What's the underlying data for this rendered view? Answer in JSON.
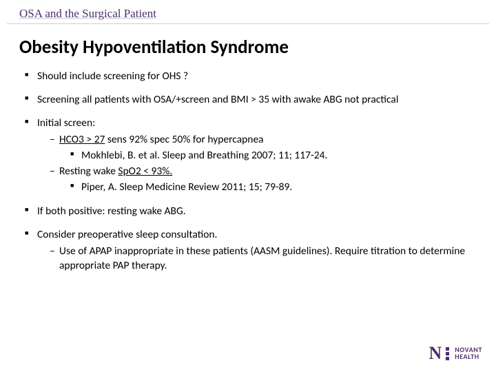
{
  "colors": {
    "brand": "#512d6d",
    "text": "#000000",
    "rule": "#d0cbd8",
    "bg": "#ffffff"
  },
  "fonts": {
    "breadcrumb_family": "Georgia",
    "body_family": "Calibri",
    "title_size_pt": 27,
    "body_size_pt": 15.5
  },
  "breadcrumb": "OSA and the Surgical Patient",
  "title": "Obesity Hypoventilation Syndrome",
  "bullets": {
    "b1": "Should  include screening for OHS ?",
    "b2": "Screening all patients with OSA/+screen and BMI > 35 with awake ABG not practical",
    "b3": "Initial screen:",
    "b3a_u": "HCO3 > 27",
    "b3a_rest": "   sens 92% spec 50% for hypercapnea",
    "b3a_ref": "Mokhlebi, B. et al. Sleep and Breathing 2007; 11; 117-24.",
    "b3b_prefix": "Resting wake ",
    "b3b_u": "SpO2 < 93%.",
    "b3b_ref": "Piper, A. Sleep Medicine Review 2011; 15; 79-89.",
    "b4": "If both positive: resting wake ABG.",
    "b5": "Consider preoperative sleep consultation.",
    "b5a": "Use of APAP inappropriate in these patients (AASM guidelines). Require titration to determine appropriate  PAP therapy."
  },
  "logo": {
    "brand_top": "NOVANT",
    "brand_bottom": "HEALTH",
    "mark": "N"
  }
}
